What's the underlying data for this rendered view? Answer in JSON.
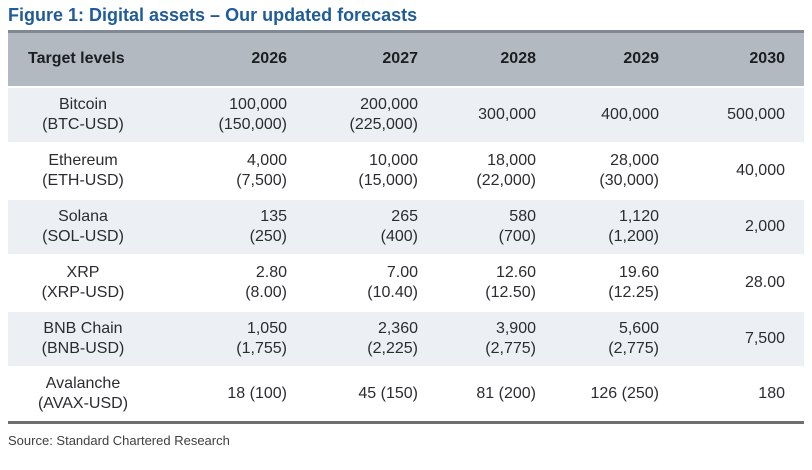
{
  "colors": {
    "title_blue": "#1f5c99",
    "header_band": "#b3b9c1",
    "alt_row": "#eceff4",
    "top_rule": "#7f8893",
    "bottom_rule": "#6f6f6f",
    "text": "#2a2d30"
  },
  "chart_data": {
    "type": "table",
    "title": "Figure 1: Digital assets – Our updated forecasts",
    "columns": [
      "Target levels",
      "2026",
      "2027",
      "2028",
      "2029",
      "2030"
    ],
    "rows": [
      {
        "asset": "Bitcoin",
        "ticker": "(BTC-USD)",
        "values": [
          {
            "a": "100,000",
            "b": "(150,000)"
          },
          {
            "a": "200,000",
            "b": "(225,000)"
          },
          {
            "a": "300,000"
          },
          {
            "a": "400,000"
          },
          {
            "a": "500,000"
          }
        ]
      },
      {
        "asset": "Ethereum",
        "ticker": "(ETH-USD)",
        "values": [
          {
            "a": "4,000",
            "b": "(7,500)"
          },
          {
            "a": "10,000",
            "b": "(15,000)"
          },
          {
            "a": "18,000",
            "b": "(22,000)"
          },
          {
            "a": "28,000",
            "b": "(30,000)"
          },
          {
            "a": "40,000"
          }
        ]
      },
      {
        "asset": "Solana",
        "ticker": "(SOL-USD)",
        "values": [
          {
            "a": "135",
            "b": "(250)"
          },
          {
            "a": "265",
            "b": "(400)"
          },
          {
            "a": "580",
            "b": "(700)"
          },
          {
            "a": "1,120",
            "b": "(1,200)"
          },
          {
            "a": "2,000"
          }
        ]
      },
      {
        "asset": "XRP",
        "ticker": "(XRP-USD)",
        "values": [
          {
            "a": "2.80",
            "b": "(8.00)"
          },
          {
            "a": "7.00",
            "b": "(10.40)"
          },
          {
            "a": "12.60",
            "b": "(12.50)"
          },
          {
            "a": "19.60",
            "b": "(12.25)"
          },
          {
            "a": "28.00"
          }
        ]
      },
      {
        "asset": "BNB Chain",
        "ticker": "(BNB-USD)",
        "values": [
          {
            "a": "1,050",
            "b": "(1,755)"
          },
          {
            "a": "2,360",
            "b": "(2,225)"
          },
          {
            "a": "3,900",
            "b": "(2,775)"
          },
          {
            "a": "5,600",
            "b": "(2,775)"
          },
          {
            "a": "7,500"
          }
        ]
      },
      {
        "asset": "Avalanche",
        "ticker": "(AVAX-USD)",
        "values": [
          {
            "a": "18 (100)"
          },
          {
            "a": "45 (150)"
          },
          {
            "a": "81 (200)"
          },
          {
            "a": "126 (250)"
          },
          {
            "a": "180"
          }
        ]
      }
    ],
    "source": "Source: Standard Chartered Research",
    "layout": {
      "grid": "off",
      "row_shading": "alternating",
      "value_alignment": "right",
      "parenthetical_values_present": true
    }
  }
}
